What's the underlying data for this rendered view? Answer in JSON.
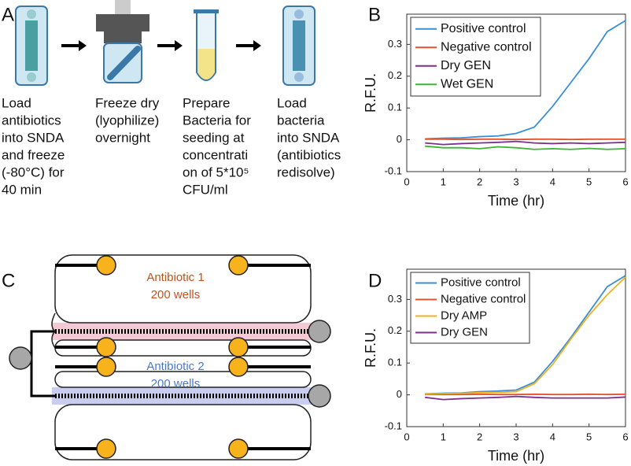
{
  "panels": [
    "A",
    "B",
    "C",
    "D"
  ],
  "steps": [
    {
      "lines": [
        "Load",
        "antibiotics",
        "into SNDA",
        "and freeze",
        "(-80°C) for",
        "40 min"
      ]
    },
    {
      "lines": [
        "Freeze dry",
        "(lyophilize)",
        "overnight"
      ]
    },
    {
      "lines": [
        "Prepare",
        "Bacteria for",
        "seeding at",
        "concentrati",
        "on of 5*10⁵",
        "CFU/ml"
      ]
    },
    {
      "lines": [
        "Load",
        "bacteria",
        "into SNDA",
        "(antibiotics",
        "redisolve)"
      ]
    }
  ],
  "diagram": {
    "labels": [
      {
        "lines": [
          "Antibiotic 1",
          "200 wells"
        ]
      },
      {
        "lines": [
          "Antibiotic 2",
          "200 wells"
        ]
      }
    ]
  },
  "chart_data": [
    {
      "type": "line",
      "xlabel": "Time (hr)",
      "ylabel": "R.F.U.",
      "x": [
        0.5,
        1,
        1.5,
        2,
        2.5,
        3,
        3.5,
        4,
        4.5,
        5,
        5.5,
        6
      ],
      "xlim": [
        0,
        6
      ],
      "xticks": [
        0,
        1,
        2,
        3,
        4,
        5,
        6
      ],
      "ylim": [
        -0.1,
        0.395
      ],
      "yticks": [
        -0.1,
        0,
        0.1,
        0.2,
        0.3
      ],
      "legend": "upper-left",
      "series": [
        {
          "name": "Positive control",
          "color": "#3a8fd6",
          "values": [
            0.003,
            0.005,
            0.006,
            0.01,
            0.012,
            0.02,
            0.04,
            0.105,
            0.18,
            0.255,
            0.34,
            0.375
          ]
        },
        {
          "name": "Negative control",
          "color": "#e0552d",
          "values": [
            0.002,
            0.002,
            0.001,
            0.002,
            0.002,
            0.001,
            0.002,
            0.002,
            0.001,
            0.002,
            0.002,
            0.002
          ]
        },
        {
          "name": "Dry GEN",
          "color": "#7e2f8e",
          "values": [
            -0.01,
            -0.015,
            -0.012,
            -0.01,
            -0.008,
            -0.005,
            -0.01,
            -0.012,
            -0.01,
            -0.012,
            -0.01,
            -0.008
          ]
        },
        {
          "name": "Wet GEN",
          "color": "#3cb534",
          "values": [
            -0.02,
            -0.025,
            -0.025,
            -0.028,
            -0.022,
            -0.025,
            -0.03,
            -0.028,
            -0.03,
            -0.027,
            -0.03,
            -0.028
          ]
        }
      ]
    },
    {
      "type": "line",
      "xlabel": "Time (hr)",
      "ylabel": "R.F.U.",
      "x": [
        0.5,
        1,
        1.5,
        2,
        2.5,
        3,
        3.5,
        4,
        4.5,
        5,
        5.5,
        6
      ],
      "xlim": [
        0,
        6
      ],
      "xticks": [
        0,
        1,
        2,
        3,
        4,
        5,
        6
      ],
      "ylim": [
        -0.1,
        0.395
      ],
      "yticks": [
        -0.1,
        0,
        0.1,
        0.2,
        0.3
      ],
      "legend": "upper-left",
      "series": [
        {
          "name": "Positive control",
          "color": "#3a8fd6",
          "values": [
            0.003,
            0.005,
            0.006,
            0.01,
            0.012,
            0.015,
            0.04,
            0.105,
            0.18,
            0.26,
            0.34,
            0.375
          ]
        },
        {
          "name": "Negative control",
          "color": "#e0552d",
          "values": [
            0.001,
            0.001,
            0.001,
            0.002,
            0.001,
            0.001,
            0.002,
            0.001,
            0.001,
            0.002,
            0.001,
            0.002
          ]
        },
        {
          "name": "Dry AMP",
          "color": "#edb120",
          "values": [
            0.002,
            0.004,
            0.005,
            0.007,
            0.008,
            0.01,
            0.035,
            0.095,
            0.175,
            0.25,
            0.315,
            0.37
          ]
        },
        {
          "name": "Dry GEN",
          "color": "#7e2f8e",
          "values": [
            -0.008,
            -0.015,
            -0.012,
            -0.01,
            -0.008,
            -0.005,
            -0.008,
            -0.01,
            -0.01,
            -0.01,
            -0.01,
            -0.007
          ]
        }
      ]
    }
  ]
}
